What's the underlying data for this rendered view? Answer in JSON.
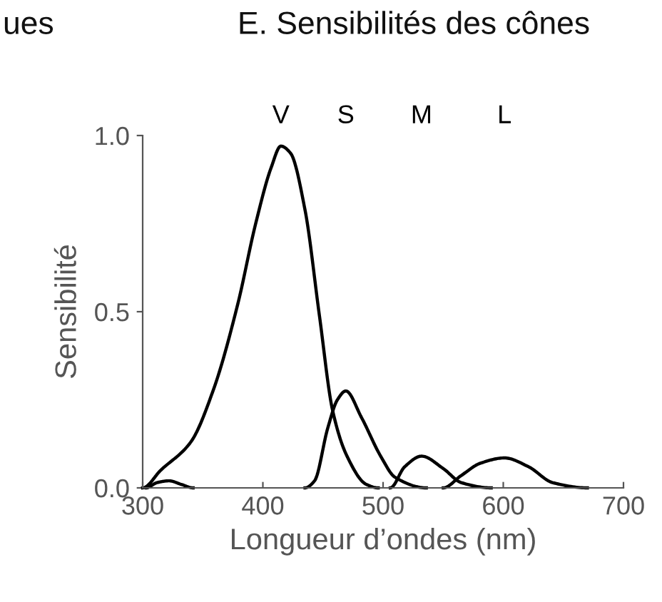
{
  "chart_data": {
    "type": "line",
    "title": "E. Sensibilités des cônes",
    "xlabel": "Longueur d’ondes (nm)",
    "ylabel": "Sensibilité",
    "annotations": [
      "ues",
      "V",
      "S",
      "M",
      "L"
    ],
    "xlim": [
      300,
      700
    ],
    "ylim": [
      0,
      1.0
    ],
    "xticks": [
      300,
      400,
      500,
      600,
      700
    ],
    "yticks": [
      {
        "value": 0,
        "label": "0.0"
      },
      {
        "value": 0.5,
        "label": "0.5"
      },
      {
        "value": 1.0,
        "label": "1.0"
      }
    ],
    "grid": false,
    "legend": false,
    "marker": "none",
    "line_style": "solid",
    "series": [
      {
        "color": "#000000",
        "x": [
          300,
          315,
          340,
          359,
          379,
          394,
          407,
          415,
          423,
          435,
          447,
          458,
          470,
          486,
          496
        ],
        "values": [
          0,
          0.05,
          0.13,
          0.28,
          0.52,
          0.75,
          0.91,
          0.97,
          0.95,
          0.79,
          0.49,
          0.22,
          0.09,
          0.01,
          0
        ]
      },
      {
        "color": "#000000",
        "x": [
          303,
          312,
          322,
          332,
          342
        ],
        "values": [
          0,
          0.015,
          0.02,
          0.01,
          0
        ]
      },
      {
        "color": "#000000",
        "x": [
          435,
          443,
          454,
          462,
          469,
          482,
          498,
          510,
          536
        ],
        "values": [
          0,
          0.02,
          0.17,
          0.25,
          0.275,
          0.2,
          0.09,
          0.03,
          0
        ]
      },
      {
        "color": "#000000",
        "x": [
          506,
          518,
          532,
          550,
          565,
          590
        ],
        "values": [
          0,
          0.06,
          0.09,
          0.055,
          0.015,
          0
        ]
      },
      {
        "color": "#000000",
        "x": [
          550,
          565,
          581,
          601,
          621,
          641,
          670
        ],
        "values": [
          0,
          0.035,
          0.07,
          0.085,
          0.06,
          0.015,
          0
        ]
      }
    ]
  }
}
